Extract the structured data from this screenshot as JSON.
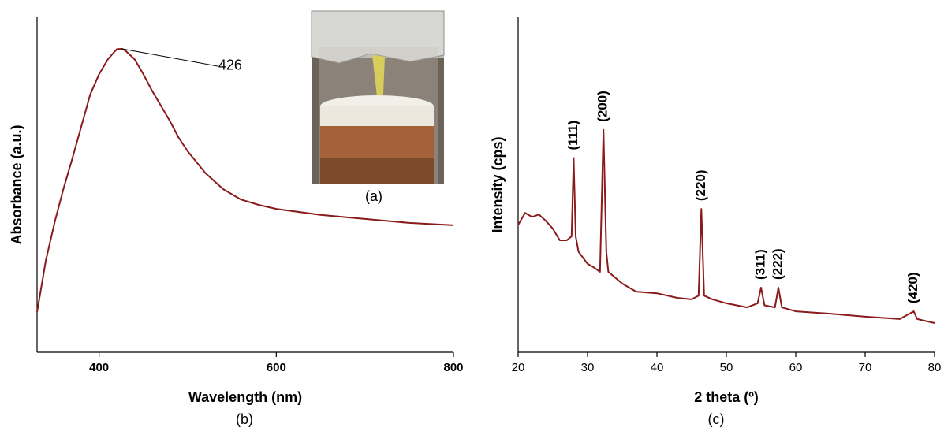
{
  "captions": [
    "(a)",
    "(b)",
    "(c)"
  ],
  "chart_data": [
    {
      "type": "line",
      "xlabel": "Wavelength (nm)",
      "ylabel": "Absorbance (a.u.)",
      "x": [
        330,
        340,
        350,
        360,
        370,
        380,
        390,
        400,
        410,
        420,
        426,
        430,
        440,
        450,
        460,
        470,
        480,
        490,
        500,
        520,
        540,
        560,
        580,
        600,
        650,
        700,
        750,
        800
      ],
      "series": [
        {
          "color": "#8b1a1a",
          "values": [
            0.12,
            0.275,
            0.39,
            0.49,
            0.58,
            0.675,
            0.77,
            0.83,
            0.875,
            0.905,
            0.906,
            0.9,
            0.875,
            0.83,
            0.78,
            0.735,
            0.69,
            0.64,
            0.6,
            0.535,
            0.487,
            0.456,
            0.44,
            0.428,
            0.41,
            0.398,
            0.386,
            0.379
          ]
        }
      ],
      "xlim": [
        330,
        800
      ],
      "xticks": [
        400,
        600,
        800
      ],
      "ylim": [
        0,
        1
      ],
      "annotations": [
        {
          "label": "426",
          "x": 426,
          "y": 0.906
        }
      ]
    },
    {
      "type": "line",
      "xlabel": "2 theta (º)",
      "ylabel": "Intensity (cps)",
      "x": [
        20,
        21,
        22,
        23,
        24,
        25,
        26,
        27,
        27.7,
        28,
        28.3,
        28.7,
        30,
        31,
        31.8,
        32.3,
        32.7,
        33,
        35,
        37,
        40,
        43,
        45,
        46,
        46.4,
        46.8,
        48,
        50,
        53,
        54.5,
        55,
        55.5,
        57,
        57.5,
        58,
        60,
        65,
        70,
        75,
        77,
        77.5,
        80
      ],
      "series": [
        {
          "color": "#8b1a1a",
          "values": [
            0.38,
            0.416,
            0.404,
            0.411,
            0.392,
            0.369,
            0.334,
            0.334,
            0.346,
            0.58,
            0.346,
            0.3,
            0.264,
            0.252,
            0.24,
            0.664,
            0.3,
            0.24,
            0.205,
            0.181,
            0.176,
            0.162,
            0.158,
            0.169,
            0.428,
            0.169,
            0.158,
            0.146,
            0.134,
            0.146,
            0.193,
            0.14,
            0.134,
            0.193,
            0.134,
            0.122,
            0.115,
            0.106,
            0.099,
            0.122,
            0.099,
            0.087
          ]
        }
      ],
      "xlim": [
        20,
        80
      ],
      "xticks": [
        20,
        30,
        40,
        50,
        60,
        70,
        80
      ],
      "ylim": [
        0,
        1
      ],
      "annotations": [
        {
          "label": "(111)",
          "x": 28,
          "y": 0.58
        },
        {
          "label": "(200)",
          "x": 32.3,
          "y": 0.664
        },
        {
          "label": "(220)",
          "x": 46.4,
          "y": 0.428
        },
        {
          "label": "(311)",
          "x": 55,
          "y": 0.193
        },
        {
          "label": "(222)",
          "x": 57.5,
          "y": 0.193
        },
        {
          "label": "(420)",
          "x": 77,
          "y": 0.122
        }
      ]
    }
  ]
}
